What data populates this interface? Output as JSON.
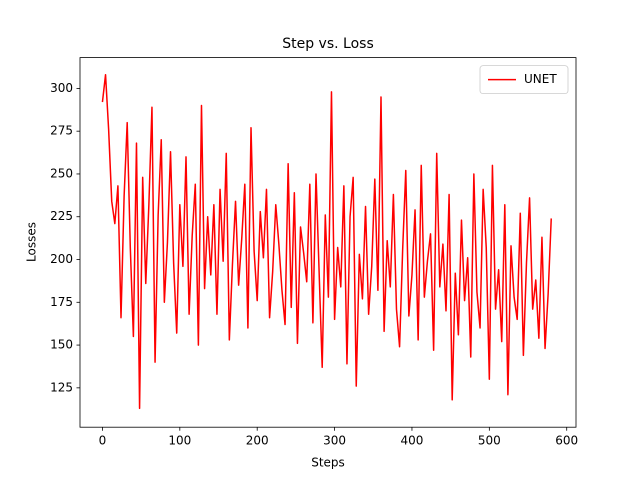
{
  "chart_data": {
    "type": "line",
    "title": "Step vs. Loss",
    "x_label": "Steps",
    "y_label": "Losses",
    "x": [
      0,
      4,
      8,
      12,
      16,
      20,
      24,
      28,
      32,
      36,
      40,
      44,
      48,
      52,
      56,
      60,
      64,
      68,
      72,
      76,
      80,
      84,
      88,
      92,
      96,
      100,
      104,
      108,
      112,
      116,
      120,
      124,
      128,
      132,
      136,
      140,
      144,
      148,
      152,
      156,
      160,
      164,
      168,
      172,
      176,
      180,
      184,
      188,
      192,
      196,
      200,
      204,
      208,
      212,
      216,
      220,
      224,
      228,
      232,
      236,
      240,
      244,
      248,
      252,
      256,
      260,
      264,
      268,
      272,
      276,
      280,
      284,
      288,
      292,
      296,
      300,
      304,
      308,
      312,
      316,
      320,
      324,
      328,
      332,
      336,
      340,
      344,
      348,
      352,
      356,
      360,
      364,
      368,
      372,
      376,
      380,
      384,
      388,
      392,
      396,
      400,
      404,
      408,
      412,
      416,
      420,
      424,
      428,
      432,
      436,
      440,
      444,
      448,
      452,
      456,
      460,
      464,
      468,
      472,
      476,
      480,
      484,
      488,
      492,
      496,
      500,
      504,
      508,
      512,
      516,
      520,
      524,
      528,
      532,
      536,
      540,
      544,
      548,
      552,
      556,
      560,
      564,
      568,
      572,
      576,
      580
    ],
    "series": [
      {
        "name": "UNET",
        "color": "#ff0000",
        "values": [
          292,
          308,
          276,
          234,
          221,
          243,
          166,
          237,
          280,
          207,
          155,
          268,
          113,
          248,
          186,
          232,
          289,
          140,
          226,
          270,
          175,
          210,
          263,
          198,
          157,
          232,
          196,
          260,
          168,
          214,
          244,
          150,
          290,
          183,
          225,
          191,
          232,
          168,
          241,
          199,
          262,
          153,
          197,
          234,
          185,
          212,
          244,
          160,
          277,
          205,
          176,
          228,
          201,
          241,
          166,
          193,
          232,
          209,
          182,
          162,
          256,
          172,
          239,
          151,
          219,
          204,
          187,
          244,
          163,
          250,
          193,
          137,
          226,
          178,
          298,
          165,
          207,
          184,
          243,
          139,
          225,
          248,
          126,
          203,
          177,
          231,
          168,
          196,
          247,
          182,
          295,
          158,
          211,
          184,
          238,
          171,
          149,
          206,
          252,
          167,
          191,
          229,
          153,
          255,
          178,
          199,
          215,
          147,
          262,
          184,
          209,
          170,
          238,
          118,
          192,
          156,
          223,
          176,
          201,
          143,
          250,
          181,
          160,
          241,
          207,
          130,
          255,
          171,
          194,
          152,
          232,
          121,
          208,
          178,
          165,
          227,
          144,
          198,
          236,
          171,
          188,
          154,
          213,
          148,
          180,
          224
        ]
      }
    ],
    "xlim": [
      -29,
      612
    ],
    "ylim": [
      102,
      318
    ],
    "xticks": [
      0,
      100,
      200,
      300,
      400,
      500,
      600
    ],
    "yticks": [
      125,
      150,
      175,
      200,
      225,
      250,
      275,
      300
    ],
    "legend": "upper right"
  }
}
